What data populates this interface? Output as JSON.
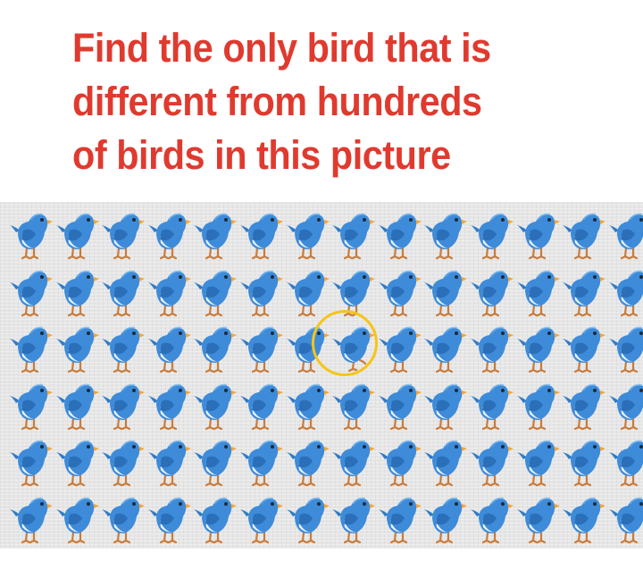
{
  "title": {
    "line1": "Find the only bird that is",
    "line2": "different from hundreds",
    "line3": "of birds in this picture",
    "color": "#e03a2f"
  },
  "puzzle": {
    "rows": 6,
    "columns": 14,
    "item_icon": "blue-bird-icon",
    "odd_item_icon": "blue-bird-one-leg-icon",
    "odd_item_row": 3,
    "odd_item_column": 8,
    "highlight_color": "#f5c518",
    "bird_color": "#3d8bd9",
    "background_color": "#e6e6e6"
  }
}
